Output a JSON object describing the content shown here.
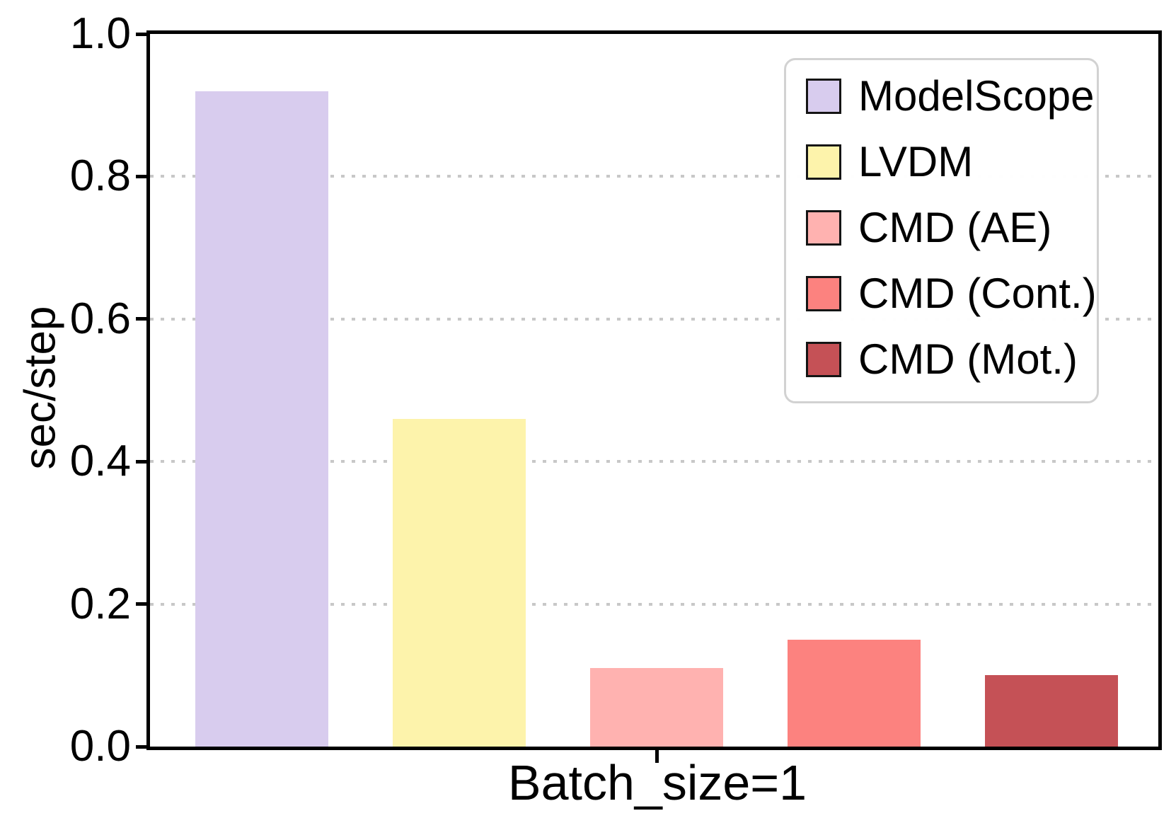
{
  "chart_data": {
    "type": "bar",
    "title": "",
    "xlabel": "Batch_size=1",
    "ylabel": "sec/step",
    "categories": [
      "Batch_size=1"
    ],
    "series": [
      {
        "name": "ModelScope",
        "values": [
          0.92
        ],
        "color": "#d8ccee"
      },
      {
        "name": "LVDM",
        "values": [
          0.46
        ],
        "color": "#fdf3ab"
      },
      {
        "name": "CMD (AE)",
        "values": [
          0.11
        ],
        "color": "#ffb2b0"
      },
      {
        "name": "CMD (Cont.)",
        "values": [
          0.15
        ],
        "color": "#fc827f"
      },
      {
        "name": "CMD (Mot.)",
        "values": [
          0.1
        ],
        "color": "#c55156"
      }
    ],
    "ylim": [
      0.0,
      1.0
    ],
    "yticks": [
      0.0,
      0.2,
      0.4,
      0.6,
      0.8,
      1.0
    ],
    "ytick_labels": [
      "0.0",
      "0.2",
      "0.4",
      "0.6",
      "0.8",
      "1.0"
    ],
    "grid": {
      "axis": "y",
      "style": "dotted",
      "color": "#c8c8c8"
    },
    "legend": {
      "position": "upper right",
      "labels": [
        "ModelScope",
        "LVDM",
        "CMD (AE)",
        "CMD (Cont.)",
        "CMD (Mot.)"
      ]
    }
  }
}
